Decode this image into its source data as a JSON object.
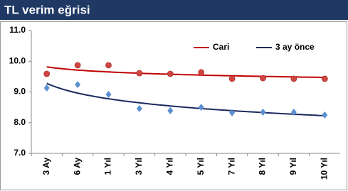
{
  "chart_data": {
    "type": "scatter",
    "title": "TL verim eğrisi",
    "categories": [
      "3 Ay",
      "6 Ay",
      "1 Yıl",
      "3 Yıl",
      "4 Yıl",
      "5 Yıl",
      "7 Yıl",
      "8 Yıl",
      "9 Yıl",
      "10 Yıl"
    ],
    "series": [
      {
        "name": "Cari",
        "color": "#d0463f",
        "line_color": "#c00000",
        "marker": "circle",
        "values": [
          9.59,
          9.87,
          9.87,
          9.61,
          9.59,
          9.64,
          9.43,
          9.45,
          9.43,
          9.43
        ]
      },
      {
        "name": "3 ay önce",
        "color": "#5b8fd0",
        "line_color": "#1a2a5e",
        "marker": "diamond",
        "values": [
          9.13,
          9.24,
          8.92,
          8.46,
          8.39,
          8.5,
          8.32,
          8.34,
          8.34,
          8.25
        ]
      }
    ],
    "trendline": "logarithmic",
    "ylim": [
      7,
      11
    ],
    "yticks": [
      {
        "value": 7,
        "label": "7.0"
      },
      {
        "value": 8,
        "label": "8.0"
      },
      {
        "value": 9,
        "label": "9.0"
      },
      {
        "value": 10,
        "label": "10.0"
      },
      {
        "value": 11,
        "label": "11.0"
      }
    ],
    "legend": "top-right"
  }
}
